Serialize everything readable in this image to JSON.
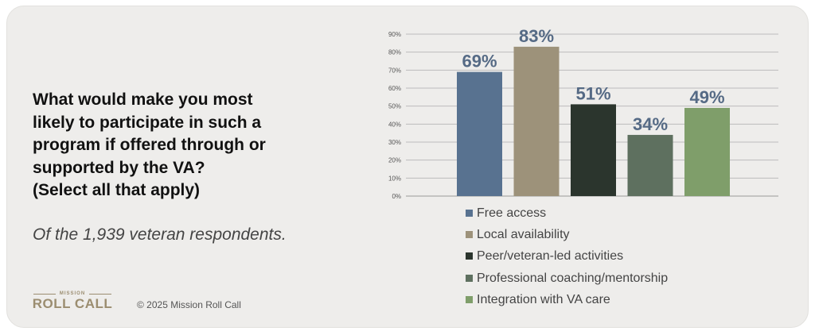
{
  "question": {
    "lines": [
      "What would make you most",
      "likely to participate in such a",
      "program if offered through or",
      "supported by the VA?",
      "(Select all that apply)"
    ]
  },
  "subtitle": "Of the 1,939 veteran respondents.",
  "logo": {
    "top_text": "MISSION",
    "main_text": "ROLL CALL"
  },
  "copyright": "© 2025 Mission Roll Call",
  "colors": {
    "background": "#eeedeb",
    "logo": "#9b8d70",
    "label": "#556a85"
  },
  "chart_data": {
    "type": "bar",
    "categories": [
      "Free access",
      "Local availability",
      "Peer/veteran-led activities",
      "Professional coaching/mentorship",
      "Integration with VA care"
    ],
    "values": [
      69,
      83,
      51,
      34,
      49
    ],
    "data_labels": [
      "69%",
      "83%",
      "51%",
      "34%",
      "49%"
    ],
    "colors": [
      "#587290",
      "#9d927a",
      "#2b352d",
      "#5e705f",
      "#7f9e6a"
    ],
    "yticks": [
      "0%",
      "10%",
      "20%",
      "30%",
      "40%",
      "50%",
      "60%",
      "70%",
      "80%",
      "90%"
    ],
    "ylim": [
      0,
      90
    ],
    "grid": true,
    "legend_position": "bottom"
  }
}
